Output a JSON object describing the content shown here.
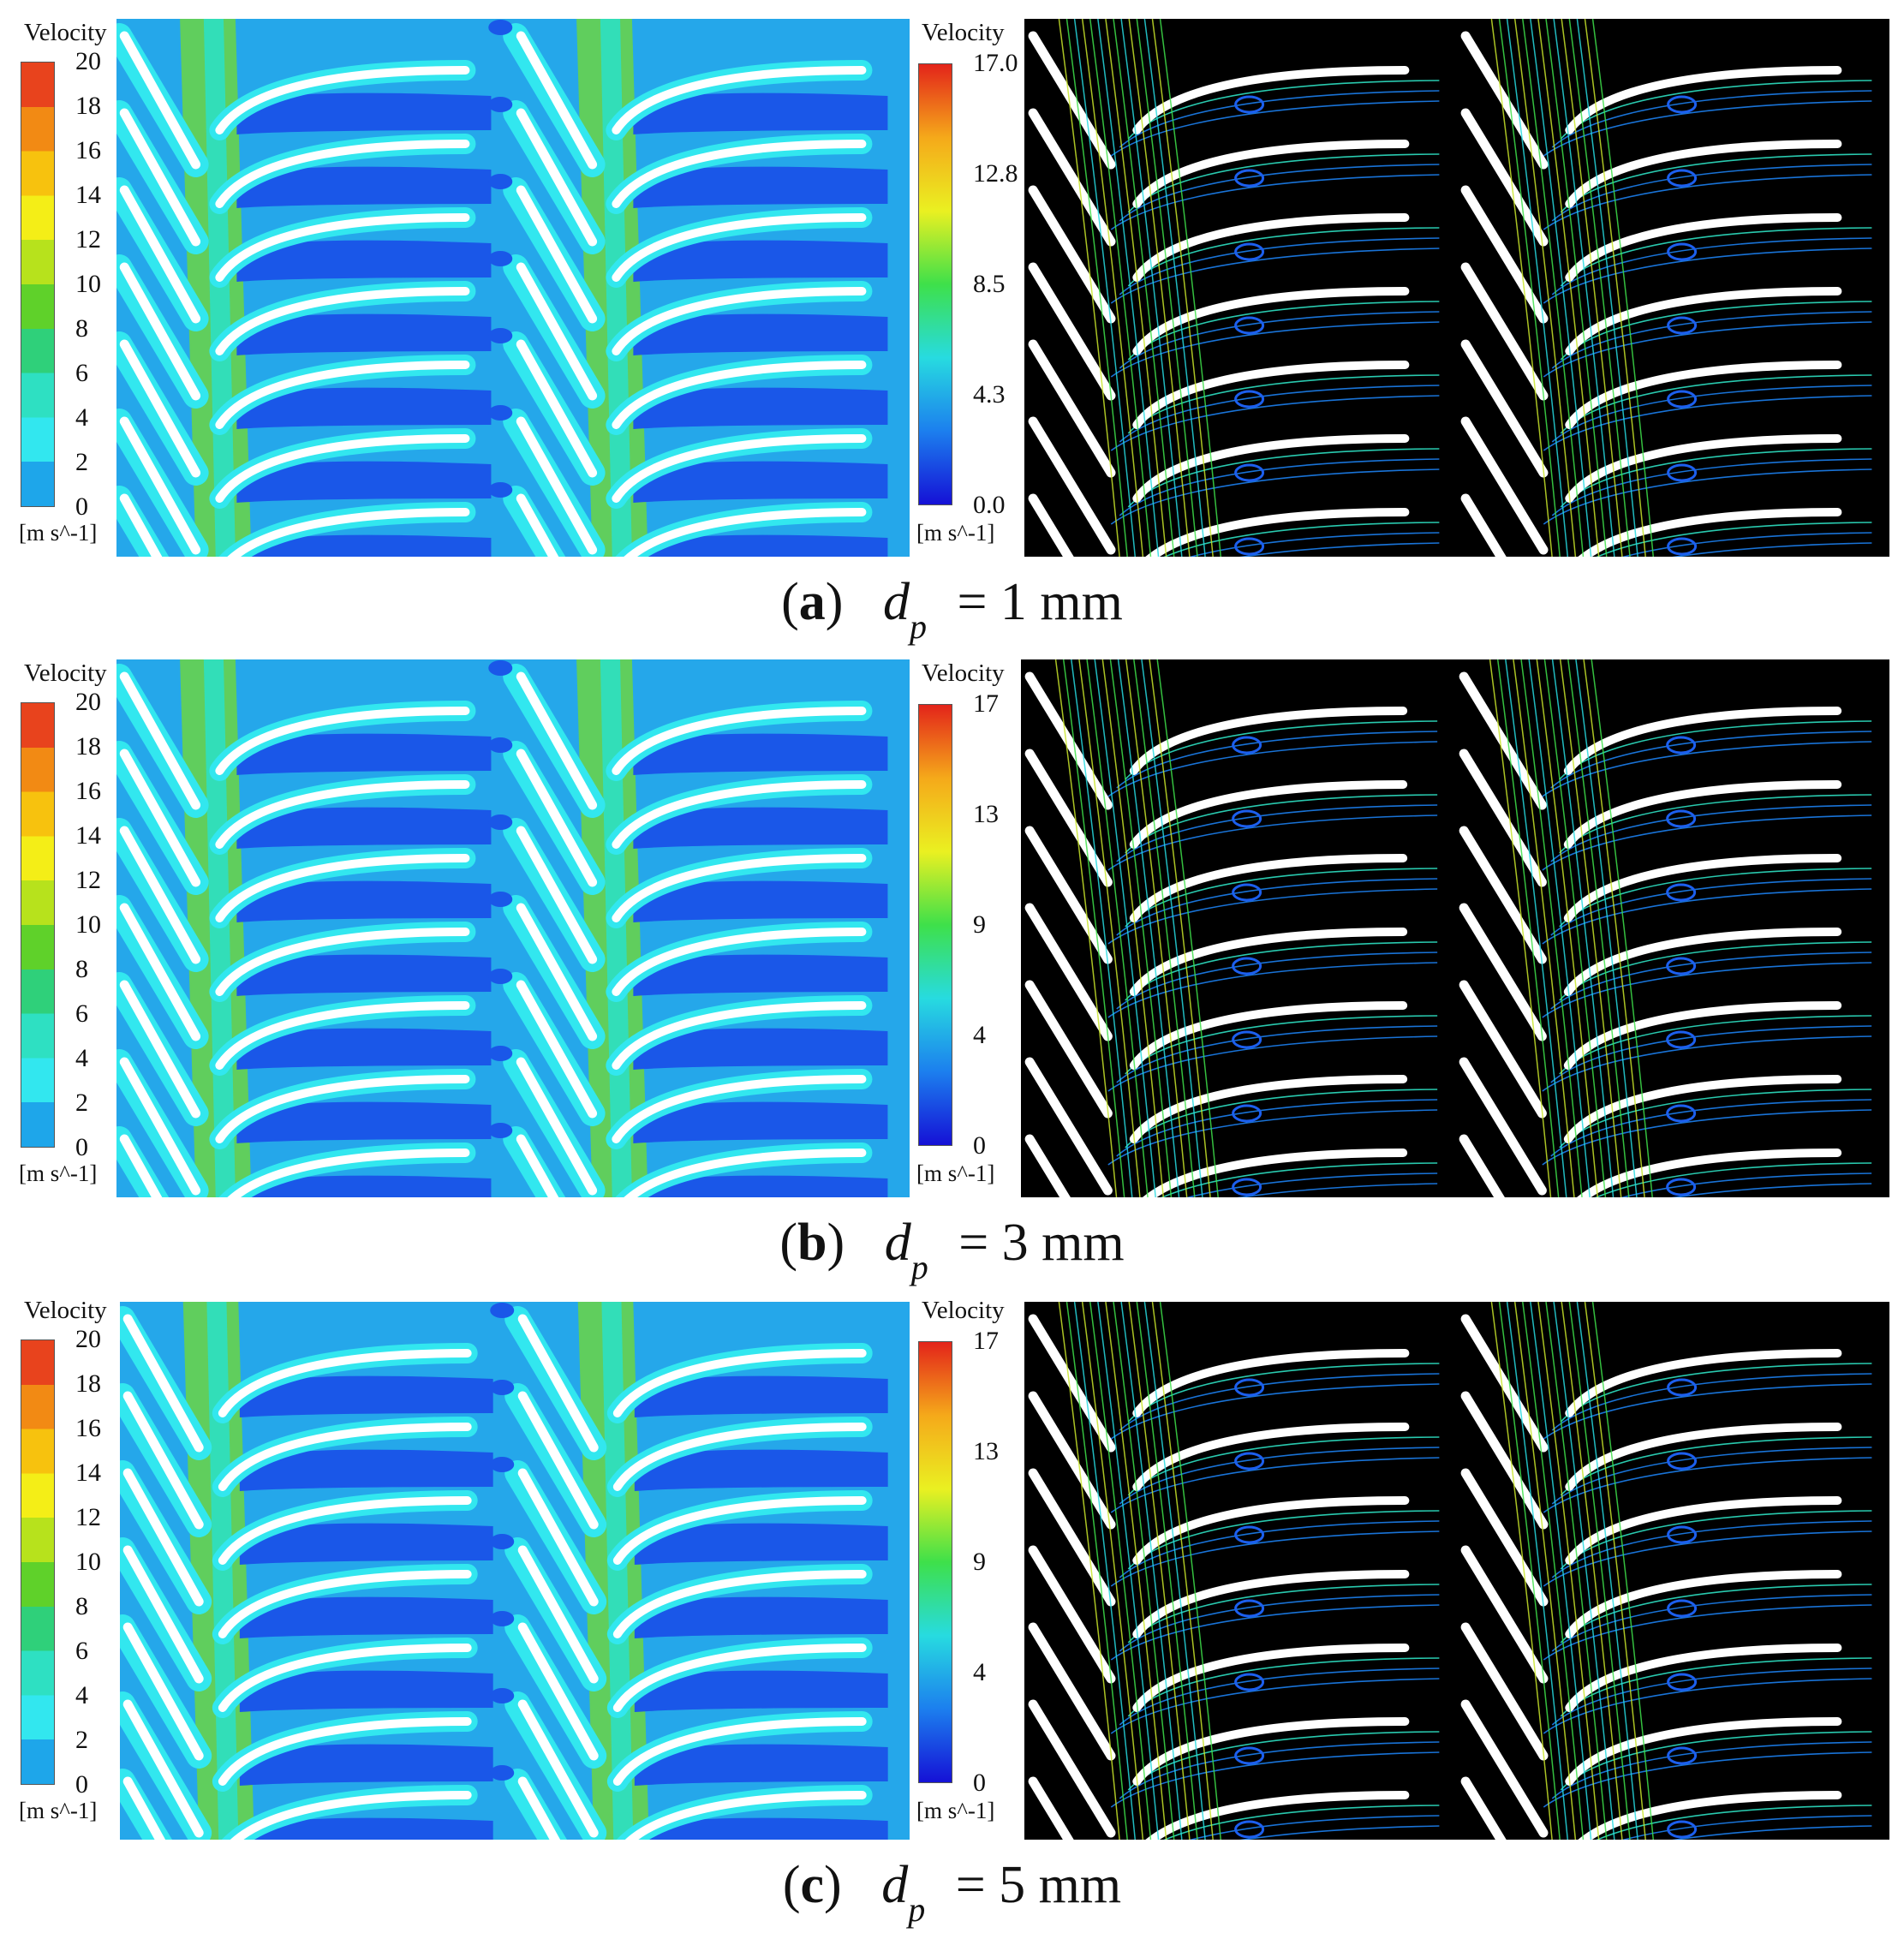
{
  "rows": [
    {
      "id": "a",
      "label": "a",
      "symbol": "d",
      "subscript": "p",
      "equals": "= 1 mm",
      "contour_legend": {
        "title": "Velocity",
        "ticks": [
          "20",
          "18",
          "16",
          "14",
          "12",
          "10",
          "8",
          "6",
          "4",
          "2",
          "0"
        ],
        "unit": "[m s^-1]"
      },
      "streamline_legend": {
        "title": "Velocity",
        "ticks": [
          "17.0",
          "12.8",
          "8.5",
          "4.3",
          "0.0"
        ],
        "unit": "[m s^-1]"
      }
    },
    {
      "id": "b",
      "label": "b",
      "symbol": "d",
      "subscript": "p",
      "equals": "= 3 mm",
      "contour_legend": {
        "title": "Velocity",
        "ticks": [
          "20",
          "18",
          "16",
          "14",
          "12",
          "10",
          "8",
          "6",
          "4",
          "2",
          "0"
        ],
        "unit": "[m s^-1]"
      },
      "streamline_legend": {
        "title": "Velocity",
        "ticks": [
          "17",
          "13",
          "9",
          "4",
          "0"
        ],
        "unit": "[m s^-1]"
      }
    },
    {
      "id": "c",
      "label": "c",
      "symbol": "d",
      "subscript": "p",
      "equals": "= 5 mm",
      "contour_legend": {
        "title": "Velocity",
        "ticks": [
          "20",
          "18",
          "16",
          "14",
          "12",
          "10",
          "8",
          "6",
          "4",
          "2",
          "0"
        ],
        "unit": "[m s^-1]"
      },
      "streamline_legend": {
        "title": "Velocity",
        "ticks": [
          "17",
          "13",
          "9",
          "4",
          "0"
        ],
        "unit": "[m s^-1]"
      }
    }
  ],
  "colors": {
    "contour_bands_top_to_bottom": [
      "#e8431d",
      "#f28a14",
      "#f7c20e",
      "#f4ee17",
      "#b7e21c",
      "#5fd12a",
      "#2fd07a",
      "#2ee0c2",
      "#32e7ef",
      "#1ea6ea",
      "#1a57e8"
    ],
    "streamline_gradient": [
      "#e3241a",
      "#f5a91a",
      "#eaf021",
      "#3ee04a",
      "#27dbe0",
      "#1c7fee",
      "#1511d6"
    ],
    "contour_background": "#25a7ea",
    "streamline_background": "#000000",
    "blade": "#ffffff"
  }
}
